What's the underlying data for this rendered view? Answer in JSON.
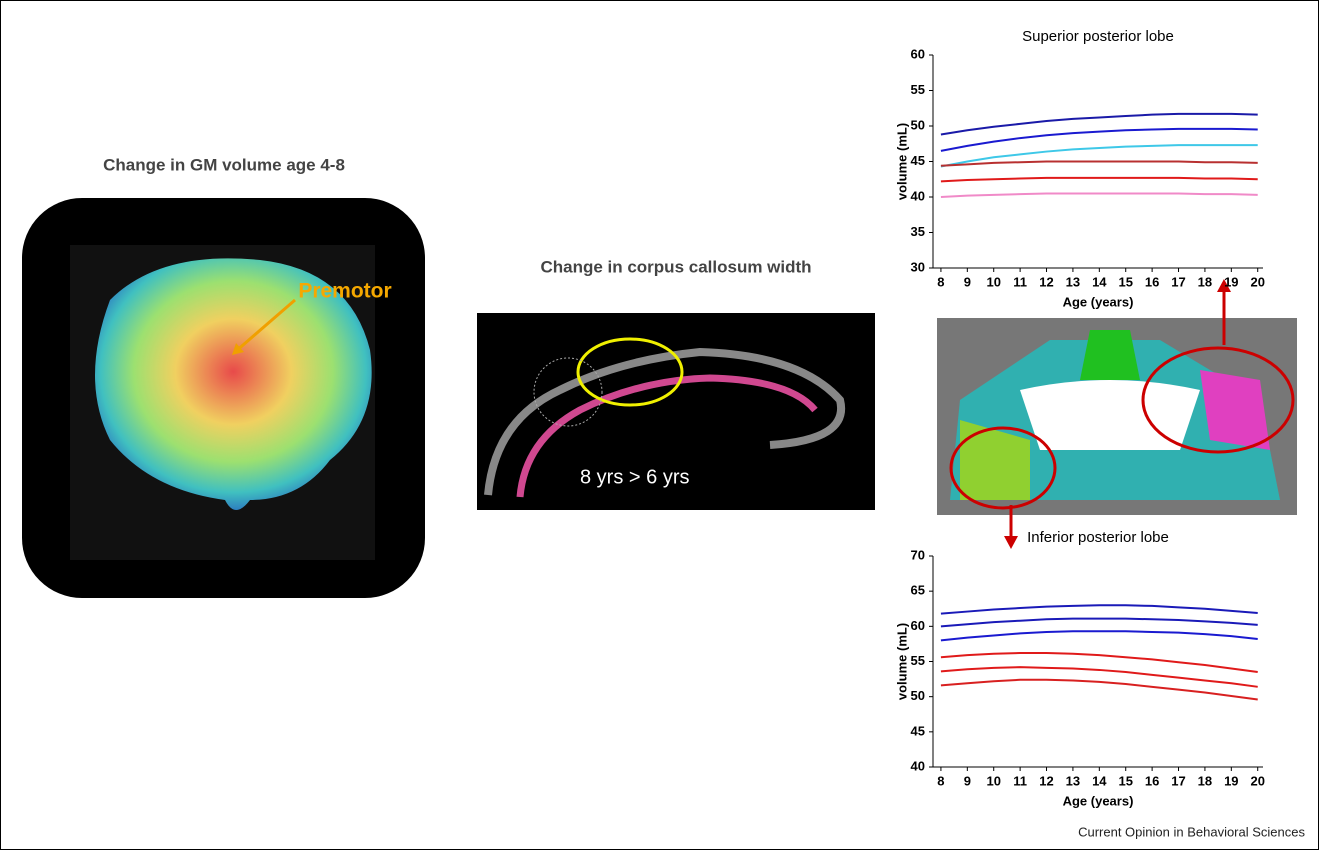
{
  "panels": {
    "gm_title": "Change in GM volume age 4-8",
    "premotor": "Premotor",
    "cc_title": "Change in corpus callosum width",
    "cc_label": "8 yrs > 6 yrs",
    "credit": "Current Opinion in Behavioral Sciences"
  },
  "chart_data": [
    {
      "type": "line",
      "title": "Superior posterior lobe",
      "xlabel": "Age (years)",
      "ylabel": "volume (mL)",
      "x": [
        8,
        9,
        10,
        11,
        12,
        13,
        14,
        15,
        16,
        17,
        18,
        19,
        20
      ],
      "xlim": [
        7.7,
        20.2
      ],
      "xticks": [
        8,
        9,
        10,
        11,
        12,
        13,
        14,
        15,
        16,
        17,
        18,
        19,
        20
      ],
      "ylim": [
        30,
        60
      ],
      "yticks": [
        30,
        35,
        40,
        45,
        50,
        55,
        60
      ],
      "series": [
        {
          "color": "#1a1aa8",
          "values": [
            48.8,
            49.4,
            49.9,
            50.3,
            50.7,
            51.0,
            51.2,
            51.4,
            51.6,
            51.7,
            51.7,
            51.7,
            51.6
          ]
        },
        {
          "color": "#1a1ad0",
          "values": [
            46.5,
            47.2,
            47.8,
            48.3,
            48.7,
            49.0,
            49.2,
            49.4,
            49.5,
            49.6,
            49.6,
            49.6,
            49.5
          ]
        },
        {
          "color": "#3ec8e8",
          "values": [
            44.3,
            45.0,
            45.6,
            46.0,
            46.4,
            46.7,
            46.9,
            47.1,
            47.2,
            47.3,
            47.3,
            47.3,
            47.3
          ]
        },
        {
          "color": "#b83030",
          "values": [
            44.4,
            44.6,
            44.8,
            44.9,
            45.0,
            45.0,
            45.0,
            45.0,
            45.0,
            45.0,
            44.9,
            44.9,
            44.8
          ]
        },
        {
          "color": "#e01a1a",
          "values": [
            42.2,
            42.4,
            42.5,
            42.6,
            42.7,
            42.7,
            42.7,
            42.7,
            42.7,
            42.7,
            42.6,
            42.6,
            42.5
          ]
        },
        {
          "color": "#f08ac8",
          "values": [
            40.0,
            40.2,
            40.3,
            40.4,
            40.5,
            40.5,
            40.5,
            40.5,
            40.5,
            40.5,
            40.4,
            40.4,
            40.3
          ]
        }
      ]
    },
    {
      "type": "line",
      "title": "Inferior posterior lobe",
      "xlabel": "Age (years)",
      "ylabel": "volume (mL)",
      "x": [
        8,
        9,
        10,
        11,
        12,
        13,
        14,
        15,
        16,
        17,
        18,
        19,
        20
      ],
      "xlim": [
        7.7,
        20.2
      ],
      "xticks": [
        8,
        9,
        10,
        11,
        12,
        13,
        14,
        15,
        16,
        17,
        18,
        19,
        20
      ],
      "ylim": [
        40,
        70
      ],
      "yticks": [
        40,
        45,
        50,
        55,
        60,
        65,
        70
      ],
      "series": [
        {
          "color": "#1a1ab8",
          "values": [
            61.8,
            62.1,
            62.4,
            62.6,
            62.8,
            62.9,
            63.0,
            63.0,
            62.9,
            62.7,
            62.5,
            62.2,
            61.9
          ]
        },
        {
          "color": "#1a1ab8",
          "values": [
            60.0,
            60.3,
            60.6,
            60.8,
            61.0,
            61.1,
            61.1,
            61.1,
            61.0,
            60.9,
            60.7,
            60.5,
            60.2
          ]
        },
        {
          "color": "#1a1ad0",
          "values": [
            58.0,
            58.4,
            58.7,
            59.0,
            59.2,
            59.3,
            59.3,
            59.3,
            59.2,
            59.1,
            58.9,
            58.6,
            58.2
          ]
        },
        {
          "color": "#e01a1a",
          "values": [
            55.6,
            55.9,
            56.1,
            56.2,
            56.2,
            56.1,
            55.9,
            55.6,
            55.3,
            54.9,
            54.5,
            54.0,
            53.5
          ]
        },
        {
          "color": "#e01a1a",
          "values": [
            53.6,
            53.9,
            54.1,
            54.2,
            54.1,
            54.0,
            53.8,
            53.5,
            53.1,
            52.7,
            52.3,
            51.9,
            51.4
          ]
        },
        {
          "color": "#d82020",
          "values": [
            51.6,
            51.9,
            52.2,
            52.4,
            52.4,
            52.3,
            52.1,
            51.8,
            51.4,
            51.0,
            50.6,
            50.1,
            49.6
          ]
        }
      ]
    }
  ]
}
